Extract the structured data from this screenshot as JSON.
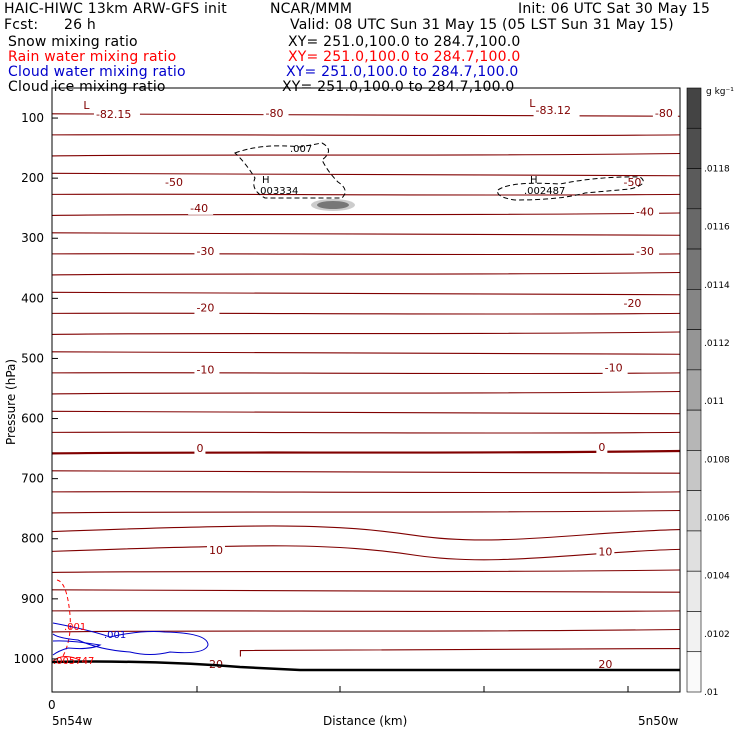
{
  "header": {
    "model": "HAIC-HIWC 13km ARW-GFS init",
    "org": "NCAR/MMM",
    "init": "Init: 06 UTC Sat 30 May 15",
    "fcst_label": "Fcst:",
    "fcst_value": "26 h",
    "valid": "Valid: 08 UTC Sun 31 May 15 (05 LST Sun 31 May 15)"
  },
  "fields": [
    {
      "name": "Snow mixing ratio",
      "xy": "XY= 251.0,100.0 to 284.7,100.0",
      "color": "#000000"
    },
    {
      "name": "Rain water mixing ratio",
      "xy": "XY= 251.0,100.0 to 284.7,100.0",
      "color": "#ff0000"
    },
    {
      "name": "Cloud water mixing ratio",
      "xy": "XY= 251.0,100.0 to 284.7,100.0",
      "color": "#0000cc"
    },
    {
      "name": "Cloud ice mixing ratio",
      "xy": "XY= 251.0,100.0 to 284.7,100.0",
      "color": "#000000"
    }
  ],
  "chart_data": {
    "type": "vertical cross-section contour",
    "ylabel": "Pressure (hPa)",
    "xlabel": "Distance (km)",
    "y_ticks": [
      "100",
      "200",
      "300",
      "400",
      "500",
      "600",
      "700",
      "800",
      "900",
      "1000"
    ],
    "y_tick_values": [
      100,
      200,
      300,
      400,
      500,
      600,
      700,
      800,
      900,
      1000
    ],
    "x_zero_label": "0",
    "x_left_label": "5n54w",
    "x_right_label": "5n50w",
    "ylim": [
      50,
      1055
    ],
    "temperature_contours": {
      "color": "#800000",
      "unit": "deg C",
      "levels": [
        -80,
        -50,
        -40,
        -30,
        -20,
        -10,
        0,
        10,
        20
      ],
      "labels": [
        {
          "text": "-82.15",
          "x": 0.07,
          "p": 100
        },
        {
          "text": "-80",
          "x": 0.34,
          "p": 98
        },
        {
          "text": "-83.12",
          "x": 0.77,
          "p": 93
        },
        {
          "text": "-80",
          "x": 0.96,
          "p": 98
        },
        {
          "text": "-50",
          "x": 0.18,
          "p": 213
        },
        {
          "text": "-50",
          "x": 0.91,
          "p": 213
        },
        {
          "text": "-40",
          "x": 0.22,
          "p": 256
        },
        {
          "text": "-40",
          "x": 0.93,
          "p": 262
        },
        {
          "text": "-30",
          "x": 0.23,
          "p": 328
        },
        {
          "text": "-30",
          "x": 0.93,
          "p": 328
        },
        {
          "text": "-20",
          "x": 0.23,
          "p": 422
        },
        {
          "text": "-20",
          "x": 0.91,
          "p": 414
        },
        {
          "text": "-10",
          "x": 0.23,
          "p": 525
        },
        {
          "text": "-10",
          "x": 0.88,
          "p": 522
        },
        {
          "text": "0",
          "x": 0.23,
          "p": 656
        },
        {
          "text": "0",
          "x": 0.87,
          "p": 654
        },
        {
          "text": "10",
          "x": 0.25,
          "p": 825
        },
        {
          "text": "10",
          "x": 0.87,
          "p": 828
        },
        {
          "text": "20",
          "x": 0.25,
          "p": 1015
        },
        {
          "text": "20",
          "x": 0.87,
          "p": 1015
        }
      ],
      "extrema": [
        {
          "text": "L",
          "x": 0.05,
          "p": 85
        },
        {
          "text": "L",
          "x": 0.76,
          "p": 82
        }
      ]
    },
    "cloud_ice_contours": {
      "style": "dashed",
      "labels": [
        ".007",
        ".003334",
        ".002487"
      ],
      "highs": [
        {
          "text": "H",
          "x": 0.33,
          "value": ".003334"
        },
        {
          "text": "H",
          "x": 0.77,
          "value": ".002487"
        }
      ]
    },
    "rain_contours": {
      "color": "#ff0000",
      "labels": [
        ".001",
        ".005747"
      ]
    },
    "cloud_water_contours": {
      "color": "#0000cc",
      "labels": [
        ".001"
      ]
    },
    "colorbar": {
      "unit": "g kg⁻¹",
      "ticks": [
        ".0118",
        ".0116",
        ".0114",
        ".0112",
        ".011",
        ".0108",
        ".0106",
        ".0104",
        ".0102",
        ".01"
      ],
      "colors": [
        "#444444",
        "#4e4e4e",
        "#5b5b5b",
        "#686868",
        "#767676",
        "#858585",
        "#959595",
        "#a5a5a5",
        "#b6b6b6",
        "#c6c6c6",
        "#d4d4d4",
        "#e0e0e0",
        "#eaeaea",
        "#f2f2f2",
        "#fafafa"
      ]
    }
  }
}
